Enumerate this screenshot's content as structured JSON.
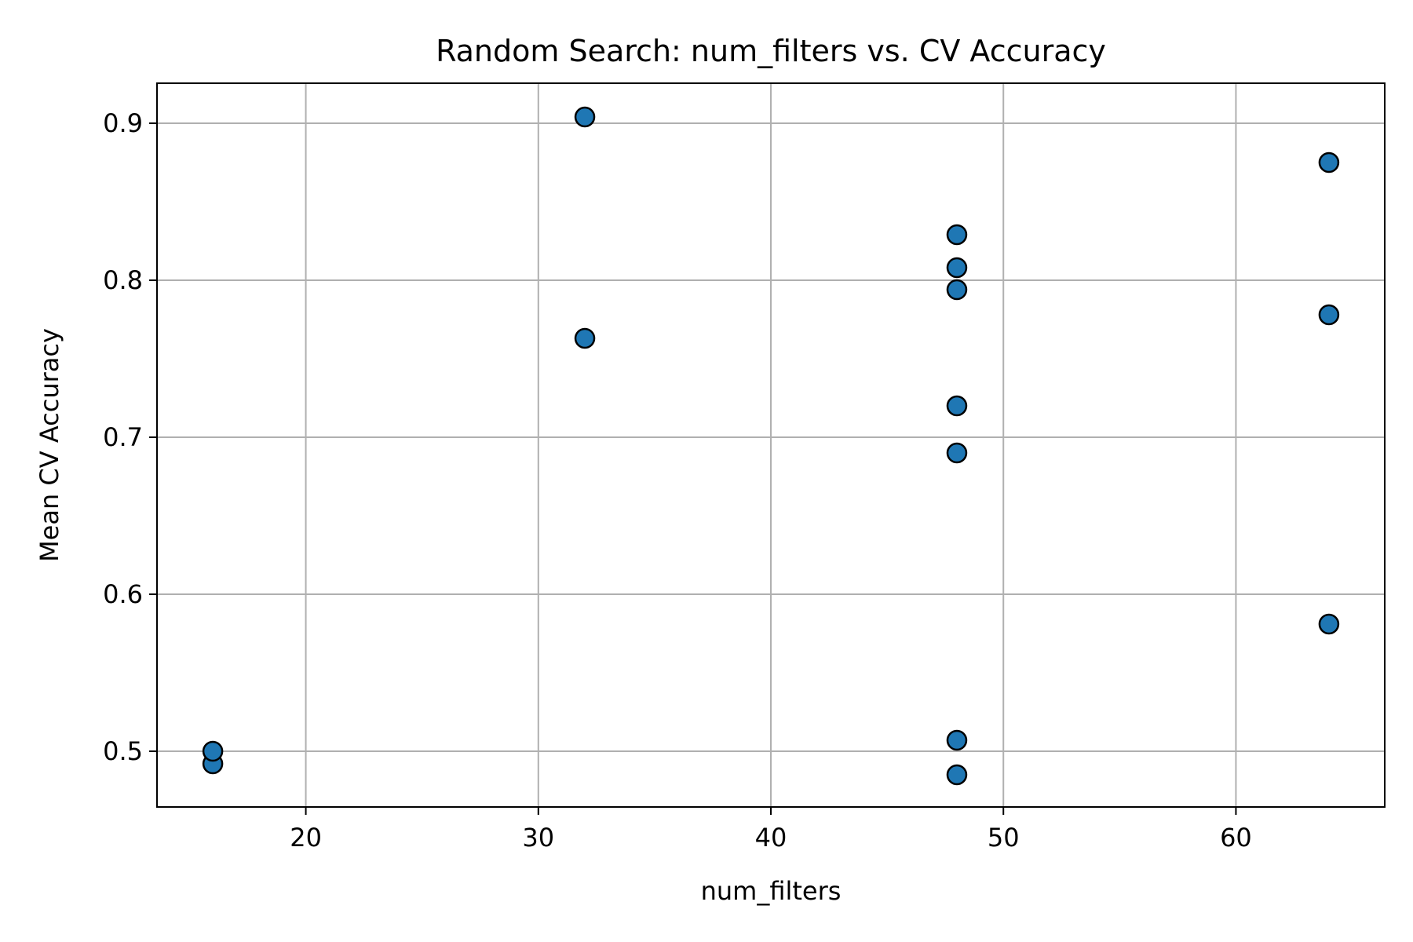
{
  "chart_data": {
    "type": "scatter",
    "title": "Random Search: num_filters vs. CV Accuracy",
    "xlabel": "num_filters",
    "ylabel": "Mean CV Accuracy",
    "xlim": [
      13.6,
      66.4
    ],
    "ylim": [
      0.4645,
      0.9255
    ],
    "xticks": [
      20,
      30,
      40,
      50,
      60
    ],
    "yticks": [
      0.5,
      0.6,
      0.7,
      0.8,
      0.9
    ],
    "xtick_labels": [
      "20",
      "30",
      "40",
      "50",
      "60"
    ],
    "ytick_labels": [
      "0.5",
      "0.6",
      "0.7",
      "0.8",
      "0.9"
    ],
    "grid": true,
    "marker_color": "#1f77b4",
    "marker_edge_color": "#000000",
    "series": [
      {
        "x": [
          16,
          16,
          32,
          32,
          48,
          48,
          48,
          48,
          48,
          48,
          48,
          64,
          64,
          64
        ],
        "y": [
          0.492,
          0.5,
          0.904,
          0.763,
          0.829,
          0.808,
          0.794,
          0.72,
          0.69,
          0.507,
          0.485,
          0.875,
          0.778,
          0.581
        ]
      }
    ]
  }
}
